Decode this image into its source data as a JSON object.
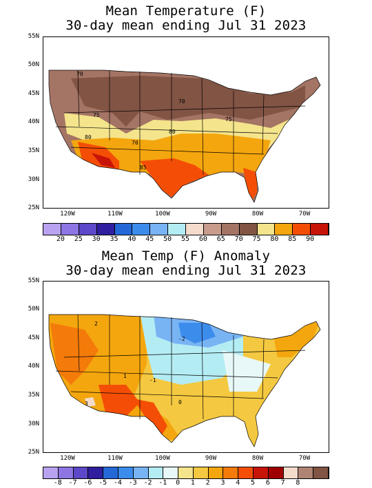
{
  "panel1": {
    "title_line1": "Mean Temperature (F)",
    "title_line2": "30-day mean ending Jul 31 2023",
    "lat_labels": [
      "55N",
      "50N",
      "45N",
      "40N",
      "35N",
      "30N",
      "25N"
    ],
    "lon_labels": [
      "120W",
      "110W",
      "100W",
      "90W",
      "80W",
      "70W"
    ],
    "contour_labels": [
      "70",
      "70",
      "75",
      "75",
      "80",
      "80",
      "70",
      "85"
    ],
    "colorbar": {
      "colors": [
        "#b9a3f0",
        "#8d76e4",
        "#5c48c8",
        "#2f1e9e",
        "#2468d8",
        "#3c8cec",
        "#78b4f4",
        "#b4ecf4",
        "#f4dccc",
        "#c89c8c",
        "#a47464",
        "#825444",
        "#f4e48c",
        "#f4a60e",
        "#f44e06",
        "#c81408"
      ],
      "labels": [
        "20",
        "25",
        "30",
        "35",
        "40",
        "45",
        "50",
        "55",
        "60",
        "65",
        "70",
        "75",
        "80",
        "85",
        "90"
      ]
    }
  },
  "panel2": {
    "title_line1": "Mean Temp (F) Anomaly",
    "title_line2": "30-day mean ending Jul 31 2023",
    "lat_labels": [
      "55N",
      "50N",
      "45N",
      "40N",
      "35N",
      "30N",
      "25N"
    ],
    "lon_labels": [
      "120W",
      "110W",
      "100W",
      "90W",
      "80W",
      "70W"
    ],
    "contour_labels": [
      "2",
      "-2",
      "-1",
      "0",
      "1",
      "3"
    ],
    "colorbar": {
      "colors": [
        "#b9a3f0",
        "#8d76e4",
        "#5c48c8",
        "#2f1e9e",
        "#2468d8",
        "#3c8cec",
        "#78b4f4",
        "#b4ecf4",
        "#e8f8f8",
        "#f4e48c",
        "#f4c840",
        "#f4a60e",
        "#f47a0a",
        "#f44e06",
        "#c81408",
        "#a00000",
        "#f4dccc",
        "#b08474",
        "#825444"
      ],
      "labels": [
        "-8",
        "-7",
        "-6",
        "-5",
        "-4",
        "-3",
        "-2",
        "-1",
        "0",
        "1",
        "2",
        "3",
        "4",
        "5",
        "6",
        "7",
        "8"
      ]
    }
  }
}
